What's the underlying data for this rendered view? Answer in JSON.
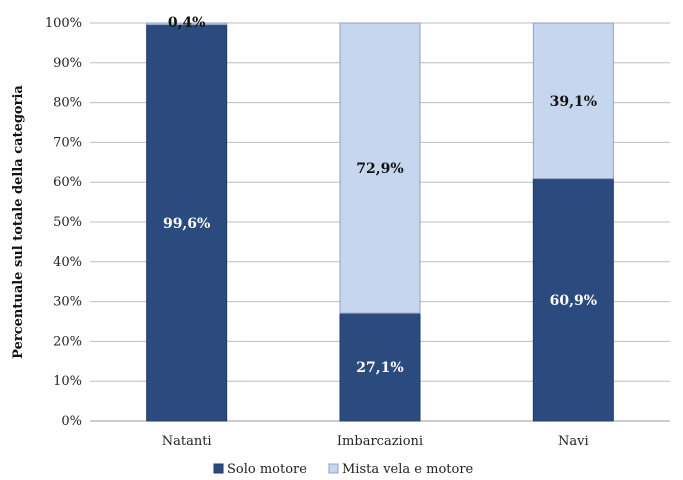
{
  "chart_data": {
    "type": "bar",
    "stacked": true,
    "categories": [
      "Natanti",
      "Imbarcazioni",
      "Navi"
    ],
    "series": [
      {
        "name": "Solo motore",
        "values": [
          99.6,
          27.1,
          60.9
        ],
        "labels": [
          "99,6%",
          "27,1%",
          "60,9%"
        ],
        "color": "#2b4a7e",
        "label_color": "#ffffff"
      },
      {
        "name": "Mista vela e motore",
        "values": [
          0.4,
          72.9,
          39.1
        ],
        "labels": [
          "0,4%",
          "72,9%",
          "39,1%"
        ],
        "color": "#c6d6ef",
        "label_color": "#111111"
      }
    ],
    "ylabel": "Percentuale sul totale della categoria",
    "xlabel": "",
    "ylim": [
      0,
      100
    ],
    "y_ticks": [
      "0%",
      "10%",
      "20%",
      "30%",
      "40%",
      "50%",
      "60%",
      "70%",
      "80%",
      "90%",
      "100%"
    ],
    "grid": true,
    "legend": "bottom"
  }
}
